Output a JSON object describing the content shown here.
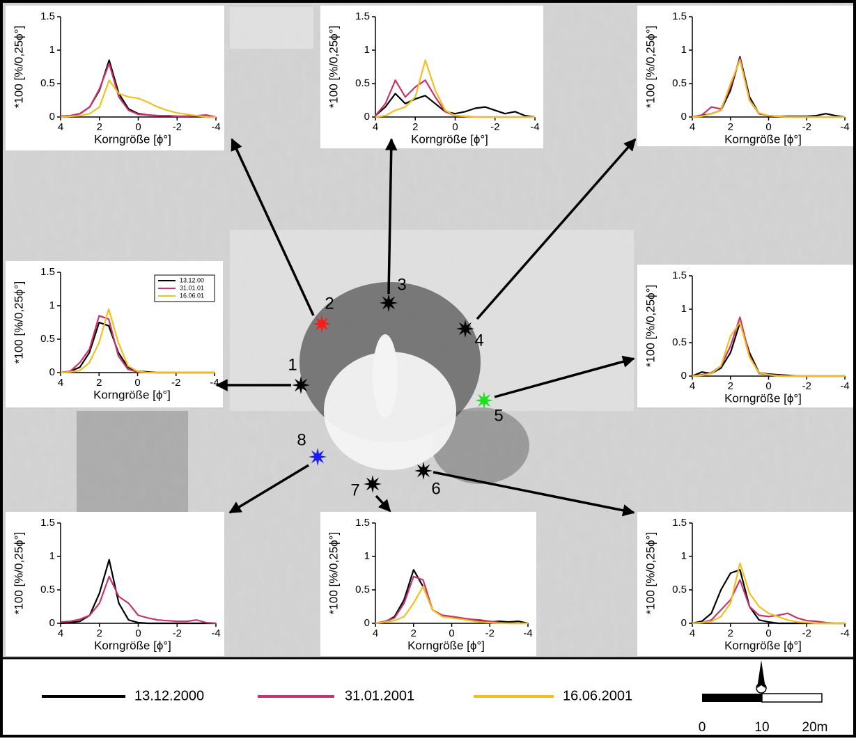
{
  "chart_data": [
    {
      "type": "line",
      "y_label": "*100 [%/0,25ϕ°]",
      "x_label": "Korngröße [ϕ°]",
      "x": [
        4,
        3.5,
        3,
        2.5,
        2,
        1.5,
        1,
        0.5,
        0,
        -0.5,
        -1,
        -1.5,
        -2,
        -2.5,
        -3,
        -3.5,
        -4
      ],
      "xlim": [
        4,
        -4
      ],
      "xticks": [
        4,
        2,
        0,
        -2,
        -4
      ],
      "ylim": [
        0,
        1.5
      ],
      "yticks": [
        0,
        0.5,
        1,
        1.5
      ],
      "series": [
        {
          "color": "#000000",
          "values": [
            0.01,
            0.02,
            0.05,
            0.15,
            0.4,
            0.85,
            0.35,
            0.12,
            0.05,
            0.03,
            0.02,
            0.02,
            0.01,
            0.01,
            0.02,
            0,
            0
          ]
        },
        {
          "color": "#c8326e",
          "values": [
            0.01,
            0.02,
            0.05,
            0.15,
            0.42,
            0.8,
            0.3,
            0.1,
            0.04,
            0.03,
            0.02,
            0.02,
            0.01,
            0.01,
            0.02,
            0.03,
            0
          ]
        },
        {
          "color": "#f0c020",
          "values": [
            0,
            0.01,
            0.02,
            0.05,
            0.15,
            0.55,
            0.35,
            0.3,
            0.28,
            0.22,
            0.15,
            0.1,
            0.06,
            0.04,
            0.02,
            0,
            0
          ]
        }
      ]
    },
    {
      "type": "line",
      "y_label": "*100 [%/0,25ϕ°]",
      "x_label": "Korngröße [ϕ°]",
      "x": [
        4,
        3.5,
        3,
        2.5,
        2,
        1.5,
        1,
        0.5,
        0,
        -0.5,
        -1,
        -1.5,
        -2,
        -2.5,
        -3,
        -3.5,
        -4
      ],
      "xlim": [
        4,
        -4
      ],
      "xticks": [
        4,
        2,
        0,
        -2,
        -4
      ],
      "ylim": [
        0,
        1.5
      ],
      "yticks": [
        0,
        0.5,
        1,
        1.5
      ],
      "series": [
        {
          "color": "#000000",
          "values": [
            0.02,
            0.15,
            0.35,
            0.2,
            0.27,
            0.32,
            0.2,
            0.08,
            0.05,
            0.08,
            0.13,
            0.15,
            0.1,
            0.05,
            0.08,
            0.02,
            0
          ]
        },
        {
          "color": "#c8326e",
          "values": [
            0.02,
            0.2,
            0.55,
            0.3,
            0.45,
            0.55,
            0.3,
            0.08,
            0.02,
            0.01,
            0,
            0,
            0,
            0,
            0,
            0,
            0
          ]
        },
        {
          "color": "#f0c020",
          "values": [
            0,
            0.02,
            0.1,
            0.15,
            0.3,
            0.85,
            0.4,
            0.1,
            0.02,
            0.01,
            0,
            0,
            0,
            0,
            0,
            0,
            0
          ]
        }
      ]
    },
    {
      "type": "line",
      "y_label": "*100 [%/0,25ϕ°]",
      "x_label": "Korngröße [ϕ°]",
      "x": [
        4,
        3.5,
        3,
        2.5,
        2,
        1.5,
        1,
        0.5,
        0,
        -0.5,
        -1,
        -1.5,
        -2,
        -2.5,
        -3,
        -3.5,
        -4
      ],
      "xlim": [
        4,
        -4
      ],
      "xticks": [
        4,
        2,
        0,
        -2,
        -4
      ],
      "ylim": [
        0,
        1.5
      ],
      "yticks": [
        0,
        0.5,
        1,
        1.5
      ],
      "series": [
        {
          "color": "#000000",
          "values": [
            0,
            0.02,
            0.05,
            0.1,
            0.4,
            0.9,
            0.3,
            0.05,
            0.02,
            0.01,
            0.01,
            0.01,
            0.01,
            0.02,
            0.05,
            0.02,
            0
          ]
        },
        {
          "color": "#c8326e",
          "values": [
            0,
            0.03,
            0.15,
            0.12,
            0.45,
            0.88,
            0.25,
            0.05,
            0.02,
            0.01,
            0,
            0,
            0,
            0,
            0,
            0,
            0
          ]
        },
        {
          "color": "#f0c020",
          "values": [
            0,
            0.01,
            0.05,
            0.1,
            0.5,
            0.85,
            0.25,
            0.06,
            0.02,
            0.01,
            0,
            0,
            0,
            0,
            0,
            0,
            0
          ]
        }
      ]
    },
    {
      "type": "line",
      "y_label": "*100 [%/0,25ϕ°]",
      "x_label": "Korngröße [ϕ°]",
      "x": [
        4,
        3.5,
        3,
        2.5,
        2,
        1.5,
        1,
        0.5,
        0,
        -0.5,
        -1,
        -1.5,
        -2,
        -2.5,
        -3,
        -3.5,
        -4
      ],
      "xlim": [
        4,
        -4
      ],
      "xticks": [
        4,
        2,
        0,
        -2,
        -4
      ],
      "ylim": [
        0,
        1.5
      ],
      "yticks": [
        0,
        0.5,
        1,
        1.5
      ],
      "legend": "upper right",
      "series": [
        {
          "name": "13.12.00",
          "color": "#000000",
          "values": [
            0,
            0.02,
            0.08,
            0.3,
            0.75,
            0.7,
            0.3,
            0.08,
            0.02,
            0.01,
            0,
            0,
            0,
            0,
            0,
            0,
            0
          ]
        },
        {
          "name": "31.01.01",
          "color": "#c8326e",
          "values": [
            0,
            0.02,
            0.15,
            0.35,
            0.85,
            0.8,
            0.25,
            0.05,
            0.01,
            0,
            0,
            0,
            0,
            0,
            0,
            0,
            0
          ]
        },
        {
          "name": "16.06.01",
          "color": "#f0c020",
          "values": [
            0,
            0.01,
            0.03,
            0.15,
            0.45,
            0.95,
            0.45,
            0.1,
            0.02,
            0,
            0,
            0,
            0,
            0,
            0,
            0,
            0
          ]
        }
      ]
    },
    {
      "type": "line",
      "y_label": "*100 [%/0,25ϕ°]",
      "x_label": "Korngröße [ϕ°]",
      "x": [
        4,
        3.5,
        3,
        2.5,
        2,
        1.5,
        1,
        0.5,
        0,
        -0.5,
        -1,
        -1.5,
        -2,
        -2.5,
        -3,
        -3.5,
        -4
      ],
      "xlim": [
        4,
        -4
      ],
      "xticks": [
        4,
        2,
        0,
        -2,
        -4
      ],
      "ylim": [
        0,
        1.5
      ],
      "yticks": [
        0,
        0.5,
        1,
        1.5
      ],
      "series": [
        {
          "color": "#000000",
          "values": [
            0,
            0.06,
            0.04,
            0.12,
            0.35,
            0.8,
            0.35,
            0.05,
            0.03,
            0.02,
            0.01,
            0,
            0,
            0,
            0,
            0,
            0
          ]
        },
        {
          "color": "#c8326e",
          "values": [
            0,
            0.02,
            0.05,
            0.15,
            0.45,
            0.88,
            0.3,
            0.04,
            0.02,
            0.01,
            0,
            0,
            0,
            0,
            0,
            0,
            0
          ]
        },
        {
          "color": "#f0c020",
          "values": [
            0,
            0.01,
            0.04,
            0.15,
            0.6,
            0.8,
            0.28,
            0.05,
            0.02,
            0,
            0,
            0,
            0,
            0,
            0,
            0,
            0
          ]
        }
      ]
    },
    {
      "type": "line",
      "y_label": "*100 [%/0,25ϕ°]",
      "x_label": "Korngröße [ϕ°]",
      "x": [
        4,
        3.5,
        3,
        2.5,
        2,
        1.5,
        1,
        0.5,
        0,
        -0.5,
        -1,
        -1.5,
        -2,
        -2.5,
        -3,
        -3.5,
        -4
      ],
      "xlim": [
        4,
        -4
      ],
      "xticks": [
        4,
        2,
        0,
        -2,
        -4
      ],
      "ylim": [
        0,
        1.5
      ],
      "yticks": [
        0,
        0.5,
        1,
        1.5
      ],
      "series": [
        {
          "color": "#000000",
          "values": [
            0,
            0.01,
            0.03,
            0.12,
            0.45,
            0.95,
            0.3,
            0.05,
            0.01,
            0,
            0,
            0,
            0,
            0,
            0,
            0,
            0
          ]
        },
        {
          "color": "#c8326e",
          "values": [
            0.02,
            0.03,
            0.06,
            0.12,
            0.3,
            0.7,
            0.4,
            0.3,
            0.12,
            0.08,
            0.05,
            0.04,
            0.03,
            0.03,
            0.05,
            0.01,
            0
          ]
        }
      ]
    },
    {
      "type": "line",
      "y_label": "*100 [%/0,25ϕ°]",
      "x_label": "Korngröße [ϕ°]",
      "x": [
        4,
        3.5,
        3,
        2.5,
        2,
        1.5,
        1,
        0.5,
        0,
        -0.5,
        -1,
        -1.5,
        -2,
        -2.5,
        -3,
        -3.5,
        -4
      ],
      "xlim": [
        4,
        -4
      ],
      "xticks": [
        4,
        2,
        0,
        -2,
        -4
      ],
      "ylim": [
        0,
        1.5
      ],
      "yticks": [
        0,
        0.5,
        1,
        1.5
      ],
      "series": [
        {
          "color": "#000000",
          "values": [
            0,
            0.02,
            0.1,
            0.35,
            0.8,
            0.55,
            0.2,
            0.12,
            0.1,
            0.08,
            0.05,
            0.03,
            0.02,
            0.03,
            0.02,
            0.03,
            0
          ]
        },
        {
          "color": "#c8326e",
          "values": [
            0,
            0.03,
            0.08,
            0.3,
            0.7,
            0.65,
            0.2,
            0.12,
            0.1,
            0.08,
            0.06,
            0.05,
            0.03,
            0.01,
            0,
            0,
            0
          ]
        },
        {
          "color": "#f0c020",
          "values": [
            0,
            0.02,
            0.04,
            0.1,
            0.3,
            0.55,
            0.2,
            0.1,
            0.08,
            0.06,
            0.04,
            0.02,
            0.01,
            0,
            0,
            0,
            0
          ]
        }
      ]
    },
    {
      "type": "line",
      "y_label": "*100 [%/0,25ϕ°]",
      "x_label": "Korngröße [ϕ°]",
      "x": [
        4,
        3.5,
        3,
        2.5,
        2,
        1.5,
        1,
        0.5,
        0,
        -0.5,
        -1,
        -1.5,
        -2,
        -2.5,
        -3,
        -3.5,
        -4
      ],
      "xlim": [
        4,
        -4
      ],
      "xticks": [
        4,
        2,
        0,
        -2,
        -4
      ],
      "ylim": [
        0,
        1.5
      ],
      "yticks": [
        0,
        0.5,
        1,
        1.5
      ],
      "series": [
        {
          "color": "#000000",
          "values": [
            0,
            0.03,
            0.15,
            0.5,
            0.75,
            0.8,
            0.25,
            0.05,
            0.02,
            0,
            0,
            0,
            0,
            0,
            0,
            0,
            0
          ]
        },
        {
          "color": "#c8326e",
          "values": [
            0,
            0.01,
            0.05,
            0.2,
            0.35,
            0.65,
            0.25,
            0.12,
            0.1,
            0.12,
            0.15,
            0.08,
            0.04,
            0.03,
            0.01,
            0,
            0
          ]
        },
        {
          "color": "#f0c020",
          "values": [
            0,
            0.01,
            0.03,
            0.1,
            0.3,
            0.9,
            0.45,
            0.25,
            0.15,
            0.1,
            0.05,
            0.02,
            0.01,
            0,
            0,
            0,
            0
          ]
        }
      ]
    }
  ],
  "stations": [
    {
      "label": "1",
      "color": "#000000"
    },
    {
      "label": "2",
      "color": "#ff1a1a"
    },
    {
      "label": "3",
      "color": "#000000"
    },
    {
      "label": "4",
      "color": "#000000"
    },
    {
      "label": "5",
      "color": "#22dd22"
    },
    {
      "label": "6",
      "color": "#000000"
    },
    {
      "label": "7",
      "color": "#000000"
    },
    {
      "label": "8",
      "color": "#1a1aff"
    }
  ],
  "legend": [
    {
      "name": "13.12.2000",
      "color": "#000000"
    },
    {
      "name": "31.01.2001",
      "color": "#c8326e"
    },
    {
      "name": "16.06.2001",
      "color": "#f0c020"
    }
  ],
  "scale_bar": {
    "labels": [
      "0",
      "10",
      "20m"
    ]
  }
}
